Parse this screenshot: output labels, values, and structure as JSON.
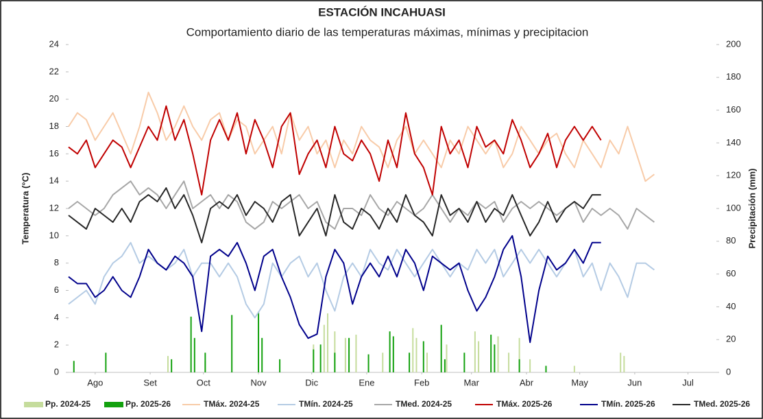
{
  "chart_data": {
    "type": "combo",
    "title": "ESTACIÓN INCAHUASI",
    "subtitle": "Comportamiento diario de las temperaturas máximas, mínimas y precipitacion",
    "y_label": "Temperatura (°C)",
    "y2_label": "Precipitación (mm)",
    "xlim": [
      0,
      365
    ],
    "xticks": [
      {
        "value": 15,
        "label": "Ago"
      },
      {
        "value": 46,
        "label": "Set"
      },
      {
        "value": 76,
        "label": "Oct"
      },
      {
        "value": 107,
        "label": "Nov"
      },
      {
        "value": 137,
        "label": "Dic"
      },
      {
        "value": 168,
        "label": "Ene"
      },
      {
        "value": 199,
        "label": "Feb"
      },
      {
        "value": 227,
        "label": "Mar"
      },
      {
        "value": 258,
        "label": "Abr"
      },
      {
        "value": 288,
        "label": "May"
      },
      {
        "value": 319,
        "label": "Jun"
      },
      {
        "value": 349,
        "label": "Jul"
      }
    ],
    "ylim": [
      0,
      24
    ],
    "yticks": [
      0,
      2,
      4,
      6,
      8,
      10,
      12,
      14,
      16,
      18,
      20,
      22,
      24
    ],
    "y2lim": [
      0,
      200
    ],
    "y2ticks": [
      0,
      20,
      40,
      60,
      80,
      100,
      120,
      140,
      160,
      180,
      200
    ],
    "grid": false,
    "legend": "bottom",
    "series": [
      {
        "name": "Pp. 2024-25",
        "type": "bar",
        "axis": "y2",
        "color": "#c5dc9c",
        "x": [
          56,
          77,
          138,
          144,
          146,
          150,
          156,
          162,
          177,
          194,
          196,
          202,
          213,
          229,
          231,
          242,
          248,
          254,
          260,
          285,
          311,
          313
        ],
        "values": [
          10,
          7,
          17,
          29,
          36,
          25,
          21,
          23,
          12,
          27,
          21,
          12,
          17,
          25,
          19,
          22,
          12,
          21,
          8,
          4,
          12,
          10
        ]
      },
      {
        "name": "Pp. 2025-26",
        "type": "bar",
        "axis": "y2",
        "color": "#13a10e",
        "x": [
          3,
          21,
          58,
          69,
          71,
          77,
          92,
          107,
          109,
          119,
          138,
          142,
          150,
          158,
          169,
          181,
          183,
          192,
          200,
          210,
          212,
          223,
          238,
          240,
          254,
          269
        ],
        "values": [
          7,
          12,
          8,
          34,
          21,
          12,
          35,
          37,
          21,
          8,
          14,
          17,
          12,
          21,
          11,
          25,
          22,
          12,
          19,
          29,
          8,
          12,
          23,
          17,
          8,
          4
        ]
      },
      {
        "name": "TMáx. 2024-25",
        "type": "line",
        "color": "#f8cba8",
        "x": [
          0,
          5,
          10,
          15,
          20,
          25,
          30,
          35,
          40,
          45,
          50,
          55,
          60,
          65,
          70,
          75,
          80,
          85,
          90,
          95,
          100,
          105,
          110,
          115,
          120,
          125,
          130,
          135,
          140,
          145,
          150,
          155,
          160,
          165,
          170,
          175,
          180,
          185,
          190,
          195,
          200,
          205,
          210,
          215,
          220,
          225,
          230,
          235,
          240,
          245,
          250,
          255,
          260,
          265,
          270,
          275,
          280,
          285,
          290,
          295,
          300,
          305,
          310,
          315,
          320,
          325,
          330
        ],
        "values": [
          18,
          19,
          18.5,
          17,
          18,
          19,
          17.5,
          16,
          18,
          20.5,
          19,
          17,
          18,
          19.5,
          18,
          17,
          18.5,
          19,
          17,
          18.5,
          18,
          16,
          17,
          18,
          16,
          19,
          17,
          18,
          16,
          17,
          15,
          17,
          16,
          18,
          17,
          16.5,
          15,
          17,
          18,
          16,
          17,
          16,
          15,
          17,
          16,
          18,
          17,
          16,
          17,
          15,
          16,
          18,
          17,
          16,
          17,
          17.5,
          16,
          15,
          17,
          16,
          15,
          17,
          16,
          18,
          16,
          14,
          14.5
        ]
      },
      {
        "name": "TMín. 2024-25",
        "type": "line",
        "color": "#b4cbe4",
        "x": [
          0,
          5,
          10,
          15,
          20,
          25,
          30,
          35,
          40,
          45,
          50,
          55,
          60,
          65,
          70,
          75,
          80,
          85,
          90,
          95,
          100,
          105,
          110,
          115,
          120,
          125,
          130,
          135,
          140,
          145,
          150,
          155,
          160,
          165,
          170,
          175,
          180,
          185,
          190,
          195,
          200,
          205,
          210,
          215,
          220,
          225,
          230,
          235,
          240,
          245,
          250,
          255,
          260,
          265,
          270,
          275,
          280,
          285,
          290,
          295,
          300,
          305,
          310,
          315,
          320,
          325,
          330
        ],
        "values": [
          5,
          5.5,
          6,
          5,
          7,
          8,
          8.5,
          9.5,
          8,
          8.5,
          8,
          7.5,
          8,
          9,
          7,
          8,
          8,
          7,
          8,
          7,
          5,
          4,
          5,
          8,
          7,
          8,
          8.5,
          7,
          8,
          6,
          4.5,
          7,
          8,
          7,
          9,
          8,
          7.5,
          9,
          8,
          7,
          8,
          9,
          8,
          7,
          8,
          7.5,
          9,
          8,
          9,
          7,
          8,
          9,
          8,
          9,
          8,
          7,
          8,
          9,
          7,
          8,
          6,
          8,
          7,
          5.5,
          8,
          8,
          7.5
        ]
      },
      {
        "name": "TMed. 2024-25",
        "type": "line",
        "color": "#a6a6a6",
        "x": [
          0,
          5,
          10,
          15,
          20,
          25,
          30,
          35,
          40,
          45,
          50,
          55,
          60,
          65,
          70,
          75,
          80,
          85,
          90,
          95,
          100,
          105,
          110,
          115,
          120,
          125,
          130,
          135,
          140,
          145,
          150,
          155,
          160,
          165,
          170,
          175,
          180,
          185,
          190,
          195,
          200,
          205,
          210,
          215,
          220,
          225,
          230,
          235,
          240,
          245,
          250,
          255,
          260,
          265,
          270,
          275,
          280,
          285,
          290,
          295,
          300,
          305,
          310,
          315,
          320,
          325,
          330
        ],
        "values": [
          12,
          12.5,
          12,
          11.5,
          12,
          13,
          13.5,
          14,
          13,
          13.5,
          13,
          12,
          13,
          14,
          12,
          12.5,
          13,
          12,
          13,
          12.5,
          11,
          10.5,
          11,
          12.5,
          12,
          12.5,
          13,
          12,
          12.5,
          11,
          10.5,
          12,
          12,
          11.5,
          13,
          12,
          11.5,
          12.5,
          12,
          11.5,
          12,
          13,
          12,
          11,
          12,
          11.5,
          12.5,
          12,
          12.5,
          11,
          12,
          12.5,
          12,
          12.5,
          12,
          11.5,
          12,
          12.5,
          11,
          12,
          11.5,
          12,
          11.5,
          10.5,
          12,
          11.5,
          11
        ]
      },
      {
        "name": "TMáx. 2025-26",
        "type": "line",
        "color": "#c00000",
        "x": [
          0,
          5,
          10,
          15,
          20,
          25,
          30,
          35,
          40,
          45,
          50,
          55,
          60,
          65,
          70,
          75,
          80,
          85,
          90,
          95,
          100,
          105,
          110,
          115,
          120,
          125,
          130,
          135,
          140,
          145,
          150,
          155,
          160,
          165,
          170,
          175,
          180,
          185,
          190,
          195,
          200,
          205,
          210,
          215,
          220,
          225,
          230,
          235,
          240,
          245,
          250,
          255,
          260,
          265,
          270,
          275,
          280,
          285,
          290,
          295,
          300
        ],
        "values": [
          16.5,
          16,
          17,
          15,
          16,
          17,
          16.5,
          15,
          16.5,
          18,
          17,
          19.5,
          17,
          18.5,
          16,
          13,
          17,
          18.5,
          17,
          19,
          16,
          18.5,
          17,
          15,
          18,
          19,
          14.5,
          16,
          17,
          15,
          18,
          16,
          15.5,
          17,
          16,
          14,
          17,
          15,
          19,
          16,
          15,
          13,
          18,
          16,
          17,
          15,
          18,
          16.5,
          17,
          16,
          18.5,
          17,
          15,
          16,
          17.5,
          15,
          17,
          18,
          17,
          18,
          17
        ]
      },
      {
        "name": "TMín. 2025-26",
        "type": "line",
        "color": "#00008b",
        "x": [
          0,
          5,
          10,
          15,
          20,
          25,
          30,
          35,
          40,
          45,
          50,
          55,
          60,
          65,
          70,
          75,
          80,
          85,
          90,
          95,
          100,
          105,
          110,
          115,
          120,
          125,
          130,
          135,
          140,
          145,
          150,
          155,
          160,
          165,
          170,
          175,
          180,
          185,
          190,
          195,
          200,
          205,
          210,
          215,
          220,
          225,
          230,
          235,
          240,
          245,
          250,
          255,
          260,
          265,
          270,
          275,
          280,
          285,
          290,
          295,
          300
        ],
        "values": [
          7,
          6.5,
          6.5,
          5.5,
          6,
          7,
          6,
          5.5,
          7,
          9,
          8,
          7.5,
          8.5,
          8,
          7,
          3,
          8.5,
          9,
          8.5,
          9.5,
          8,
          6,
          8.5,
          9,
          7,
          5.5,
          3.5,
          2.5,
          2.8,
          7,
          9,
          8,
          5,
          7,
          8,
          7,
          8.5,
          7,
          9,
          8,
          6,
          8.5,
          8,
          7.5,
          8,
          6,
          4.5,
          5.5,
          7,
          9,
          10,
          7,
          2.2,
          6,
          8.5,
          7.5,
          8,
          9,
          8,
          9.5,
          9.5
        ]
      },
      {
        "name": "TMed. 2025-26",
        "type": "line",
        "color": "#262626",
        "x": [
          0,
          5,
          10,
          15,
          20,
          25,
          30,
          35,
          40,
          45,
          50,
          55,
          60,
          65,
          70,
          75,
          80,
          85,
          90,
          95,
          100,
          105,
          110,
          115,
          120,
          125,
          130,
          135,
          140,
          145,
          150,
          155,
          160,
          165,
          170,
          175,
          180,
          185,
          190,
          195,
          200,
          205,
          210,
          215,
          220,
          225,
          230,
          235,
          240,
          245,
          250,
          255,
          260,
          265,
          270,
          275,
          280,
          285,
          290,
          295,
          300
        ],
        "values": [
          11.5,
          11,
          10.5,
          12,
          11.5,
          11,
          12,
          11,
          12.5,
          13,
          12.5,
          13.5,
          12,
          13,
          11.5,
          9.5,
          12,
          12.5,
          12,
          13,
          11.5,
          12.5,
          12,
          11,
          12.5,
          13,
          10,
          11,
          12,
          10,
          13,
          11,
          10.5,
          12,
          11.5,
          10.5,
          12,
          11,
          13,
          11.5,
          11,
          10,
          13,
          11.5,
          12,
          11,
          12.5,
          11,
          12,
          11.5,
          13,
          11.5,
          10,
          11,
          12.5,
          11,
          12,
          12.5,
          12,
          13,
          13
        ]
      }
    ]
  }
}
